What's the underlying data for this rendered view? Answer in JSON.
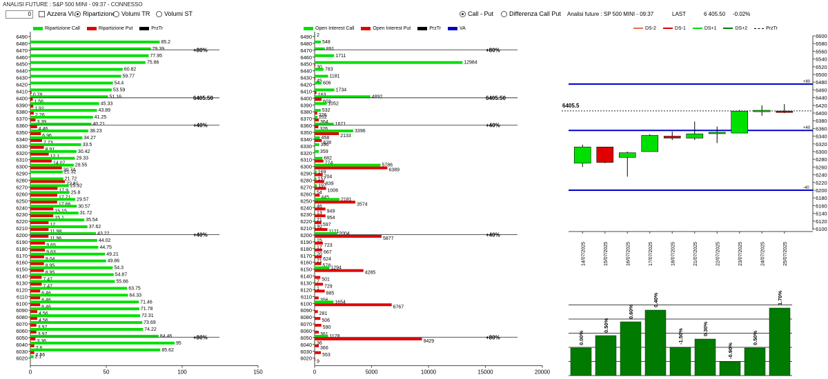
{
  "title": "ANALISI FUTURE : S&P 500 MINI - 09:37 - CONNESSO",
  "toolbar": {
    "spin_value": "0",
    "azzera_label": "Azzera VI.",
    "ripartizione_label": "Ripartizione",
    "volumi_tr_label": "Volumi TR",
    "volumi_st_label": "Volumi ST",
    "call_put_label": "Call - Put",
    "diff_call_put_label": "Differenza Call Put"
  },
  "future_info": {
    "name": "Analisi future : SP 500 MINI - 09:37",
    "last_label": "LAST",
    "last_value": "6 405.50",
    "change": "-0.02%"
  },
  "colors": {
    "call": "#00e000",
    "put": "#e00000",
    "price": "#000000",
    "va": "#0000cc",
    "dark_green": "#007a00"
  },
  "left_chart": {
    "legend": [
      "Ripartizione Call",
      "Ripartizione Put",
      "PrzTr"
    ],
    "x_ticks": [
      "0",
      "50",
      "100",
      "150"
    ],
    "markers": [
      {
        "strike": 6470,
        "label": "80%"
      },
      {
        "strike": 6400,
        "label": "6405.50"
      },
      {
        "strike": 6360,
        "label": "40%"
      },
      {
        "strike": 6200,
        "label": "40%"
      },
      {
        "strike": 6050,
        "label": "80%"
      }
    ]
  },
  "mid_chart": {
    "legend": [
      "Open Interest Call",
      "Open Interest Put",
      "PrzTr",
      "VA"
    ],
    "x_ticks": [
      "0",
      "5000",
      "10000",
      "15000",
      "20000"
    ],
    "markers": [
      {
        "strike": 6470,
        "label": "80%"
      },
      {
        "strike": 6400,
        "label": "6405.50"
      },
      {
        "strike": 6360,
        "label": "40%"
      },
      {
        "strike": 6200,
        "label": "40%"
      },
      {
        "strike": 6050,
        "label": "80%"
      }
    ]
  },
  "candle_chart": {
    "legend": [
      "DS-2",
      "DS-1",
      "DS+1",
      "DS+2",
      "PrzTr"
    ],
    "price_label": "6405.5",
    "h_lines": [
      {
        "value": 6475,
        "label": "+80"
      },
      {
        "value": 6355,
        "label": "+40"
      },
      {
        "value": 6200,
        "label": "-40"
      }
    ],
    "y_ticks": [
      "6600",
      "6580",
      "6560",
      "6540",
      "6520",
      "6500",
      "6480",
      "6460",
      "6440",
      "6420",
      "6400",
      "6380",
      "6360",
      "6340",
      "6320",
      "6300",
      "6280",
      "6260",
      "6240",
      "6220",
      "6200",
      "6180",
      "6160",
      "6140",
      "6120",
      "6100"
    ]
  },
  "bottom_chart": {
    "labels": [
      "0.00%",
      "0.50%",
      "0.60%",
      "0.40%",
      "-1.50%",
      "0.30%",
      "-0.90%",
      "0.50%",
      "1.70%"
    ]
  },
  "chart_data": [
    {
      "type": "bar",
      "title": "",
      "xlim": [
        0,
        150
      ],
      "categories": [
        "6490",
        "6480",
        "6470",
        "6460",
        "6450",
        "6440",
        "6430",
        "6420",
        "6410",
        "6400",
        "6390",
        "6380",
        "6370",
        "6360",
        "6350",
        "6340",
        "6330",
        "6320",
        "6310",
        "6300",
        "6290",
        "6280",
        "6270",
        "6260",
        "6250",
        "6240",
        "6230",
        "6220",
        "6210",
        "6200",
        "6190",
        "6180",
        "6170",
        "6160",
        "6150",
        "6140",
        "6130",
        "6120",
        "6110",
        "6100",
        "6090",
        "6080",
        "6070",
        "6060",
        "6050",
        "6040",
        "6030",
        "6020"
      ],
      "series": [
        {
          "name": "Ripartizione Call",
          "values": [
            null,
            85.2,
            79.39,
            77.95,
            75.86,
            60.82,
            59.77,
            54.4,
            53.59,
            51.16,
            45.33,
            43.89,
            41.25,
            40.21,
            38.23,
            34.27,
            33.5,
            30.42,
            29.33,
            28.55,
            21.32,
            21.72,
            25.32,
            25.8,
            29.57,
            30.57,
            31.72,
            35.54,
            37.62,
            43.22,
            44.02,
            44.75,
            49.21,
            49.86,
            54.3,
            54.87,
            55.66,
            63.75,
            64.33,
            71.46,
            71.78,
            72.31,
            73.69,
            74.22,
            84.46,
            95,
            85.62,
            2.1
          ]
        },
        {
          "name": "Ripartizione Put",
          "values": [
            null,
            null,
            null,
            null,
            null,
            null,
            null,
            null,
            0.78,
            1.56,
            1.92,
            2.26,
            3.39,
            4.46,
            6.96,
            7.73,
            8.91,
            12.1,
            14.07,
            20.74,
            null,
            22.81,
            17.9,
            17.71,
            17.66,
            15.15,
            15.1,
            12,
            11.98,
            11.96,
            9.65,
            9.63,
            9.04,
            8.95,
            8.95,
            7.47,
            7.47,
            6.46,
            6.46,
            6.46,
            4.56,
            4.56,
            3.97,
            3.97,
            3.36,
            2.6,
            2.56,
            null
          ]
        }
      ]
    },
    {
      "type": "bar",
      "title": "",
      "xlim": [
        0,
        20000
      ],
      "categories": [
        "6490",
        "6480",
        "6470",
        "6460",
        "6450",
        "6440",
        "6430",
        "6420",
        "6410",
        "6400",
        "6390",
        "6380",
        "6370",
        "6360",
        "6350",
        "6340",
        "6330",
        "6320",
        "6310",
        "6300",
        "6290",
        "6280",
        "6270",
        "6260",
        "6250",
        "6240",
        "6230",
        "6220",
        "6210",
        "6200",
        "6190",
        "6180",
        "6170",
        "6160",
        "6150",
        "6140",
        "6130",
        "6120",
        "6110",
        "6100",
        "6090",
        "6080",
        "6070",
        "6060",
        "6050",
        "6040",
        "6030",
        "6020"
      ],
      "series": [
        {
          "name": "Open Interest Call",
          "values": [
            2,
            548,
            891,
            1711,
            12984,
            783,
            1181,
            606,
            1734,
            4892,
            1052,
            532,
            252,
            1671,
            3396,
            458,
            396,
            359,
            682,
            5786,
            169,
            157,
            197,
            54,
            2181,
            46,
            13,
            21,
            92,
            2004,
            15,
            17,
            20,
            21,
            1294,
            null,
            7,
            1,
            null,
            1654,
            null,
            null,
            null,
            null,
            1178,
            36,
            null,
            null
          ]
        },
        {
          "name": "Open Interest Put",
          "values": [
            null,
            null,
            null,
            null,
            30,
            null,
            45,
            null,
            163,
            603,
            null,
            226,
            364,
            326,
            2133,
            628,
            null,
            null,
            774,
            6389,
            704,
            839,
            1006,
            445,
            3574,
            949,
            954,
            597,
            1121,
            5877,
            723,
            667,
            624,
            578,
            4285,
            501,
            729,
            885,
            356,
            6767,
            281,
            506,
            590,
            361,
            9429,
            366,
            553,
            9
          ]
        }
      ]
    },
    {
      "type": "candlestick",
      "title": "",
      "ylim": [
        6100,
        6600
      ],
      "x": [
        "14/07/2025",
        "15/07/2025",
        "16/07/2025",
        "17/07/2025",
        "18/07/2025",
        "21/07/2025",
        "22/07/2025",
        "23/07/2025",
        "24/07/2025",
        "25/07/2025"
      ],
      "ohlc": [
        [
          6270,
          6318,
          6260,
          6312,
          "up"
        ],
        [
          6312,
          6312,
          6270,
          6272,
          "down"
        ],
        [
          6297,
          6300,
          6235,
          6285,
          "up"
        ],
        [
          6300,
          6345,
          6300,
          6342,
          "up"
        ],
        [
          6340,
          6352,
          6330,
          6335,
          "down"
        ],
        [
          6335,
          6378,
          6330,
          6346,
          "up"
        ],
        [
          6348,
          6365,
          6322,
          6350,
          "up"
        ],
        [
          6348,
          6408,
          6348,
          6405,
          "up"
        ],
        [
          6405,
          6420,
          6393,
          6407,
          "up"
        ],
        [
          6405,
          6423,
          6400,
          6405,
          "down"
        ]
      ],
      "reference_lines": [
        6475,
        6355,
        6200
      ],
      "price": 6405.5
    },
    {
      "type": "bar",
      "title": "",
      "categories": [
        "14/07/2025",
        "15/07/2025",
        "16/07/2025",
        "17/07/2025",
        "18/07/2025",
        "21/07/2025",
        "22/07/2025",
        "23/07/2025",
        "24/07/2025"
      ],
      "values": [
        0.0,
        0.5,
        0.6,
        0.4,
        -1.5,
        0.3,
        -0.9,
        0.5,
        1.7
      ],
      "value_labels": [
        "0.00%",
        "0.50%",
        "0.60%",
        "0.40%",
        "-1.50%",
        "0.30%",
        "-0.90%",
        "0.50%",
        "1.70%"
      ]
    }
  ]
}
